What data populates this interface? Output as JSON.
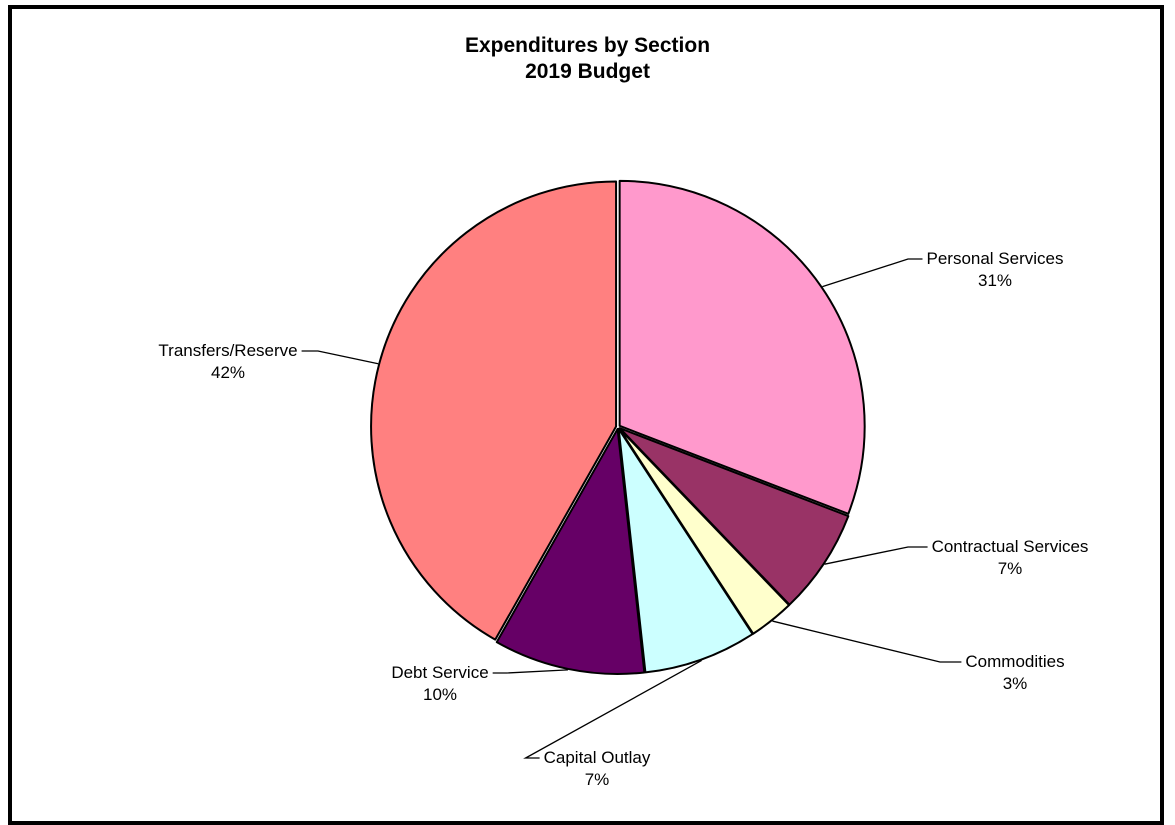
{
  "chart_data": {
    "type": "pie",
    "title": "Expenditures by Section",
    "subtitle": "2019 Budget",
    "slices": [
      {
        "label": "Personal Services",
        "pct_label": "31%",
        "value": 31,
        "color": "#ff99cc"
      },
      {
        "label": "Contractual Services",
        "pct_label": "7%",
        "value": 7,
        "color": "#993366"
      },
      {
        "label": "Commodities",
        "pct_label": "3%",
        "value": 3,
        "color": "#ffffcc"
      },
      {
        "label": "Capital Outlay",
        "pct_label": "7%",
        "value": 7.5,
        "color": "#ccffff"
      },
      {
        "label": "Debt Service",
        "pct_label": "10%",
        "value": 10,
        "color": "#660066"
      },
      {
        "label": "Transfers/Reserve",
        "pct_label": "42%",
        "value": 42,
        "color": "#ff8080"
      }
    ],
    "start_angle_deg": 0,
    "direction": "clockwise",
    "legend": "none",
    "labels": "outside-with-leader-lines"
  }
}
